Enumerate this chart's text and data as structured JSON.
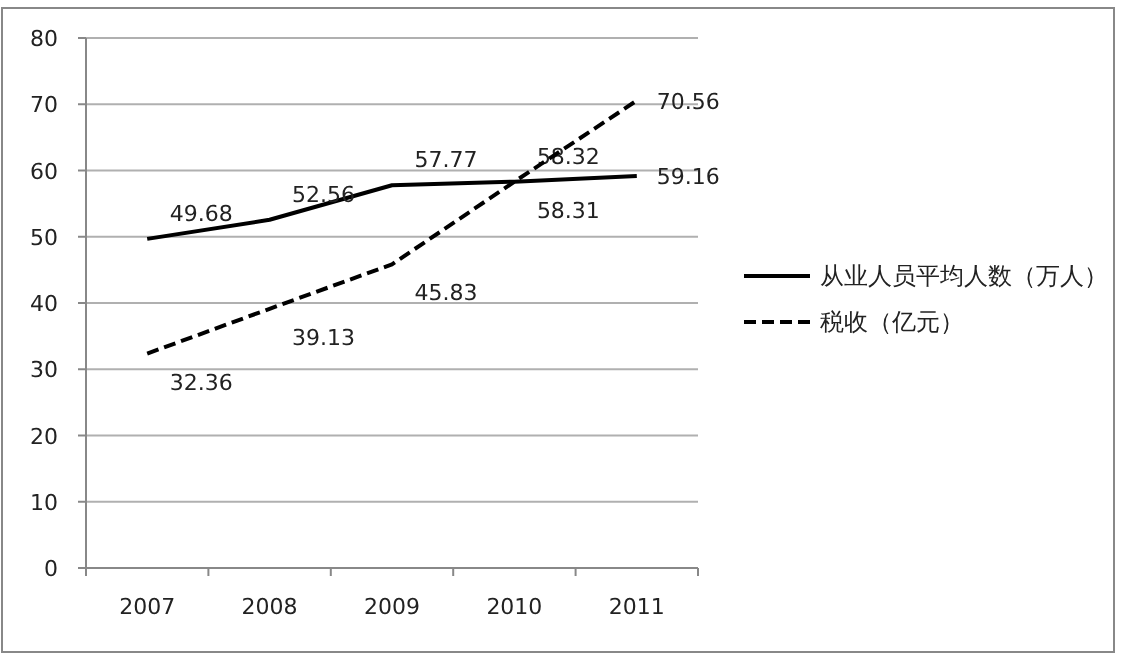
{
  "chart_data": {
    "type": "line",
    "categories": [
      "2007",
      "2008",
      "2009",
      "2010",
      "2011"
    ],
    "series": [
      {
        "name": "从业人员平均人数（万人）",
        "color": "#000000",
        "line_style": "solid",
        "values": [
          49.68,
          52.56,
          57.77,
          58.32,
          59.16
        ]
      },
      {
        "name": "税收（亿元）",
        "color": "#000000",
        "line_style": "dashed",
        "values": [
          32.36,
          39.13,
          45.83,
          58.31,
          70.56
        ]
      }
    ],
    "ylim": [
      0,
      80
    ],
    "yticks": [
      0,
      10,
      20,
      30,
      40,
      50,
      60,
      70,
      80
    ],
    "grid": "y",
    "legend": "right",
    "data_labels": true,
    "marker": "none"
  }
}
